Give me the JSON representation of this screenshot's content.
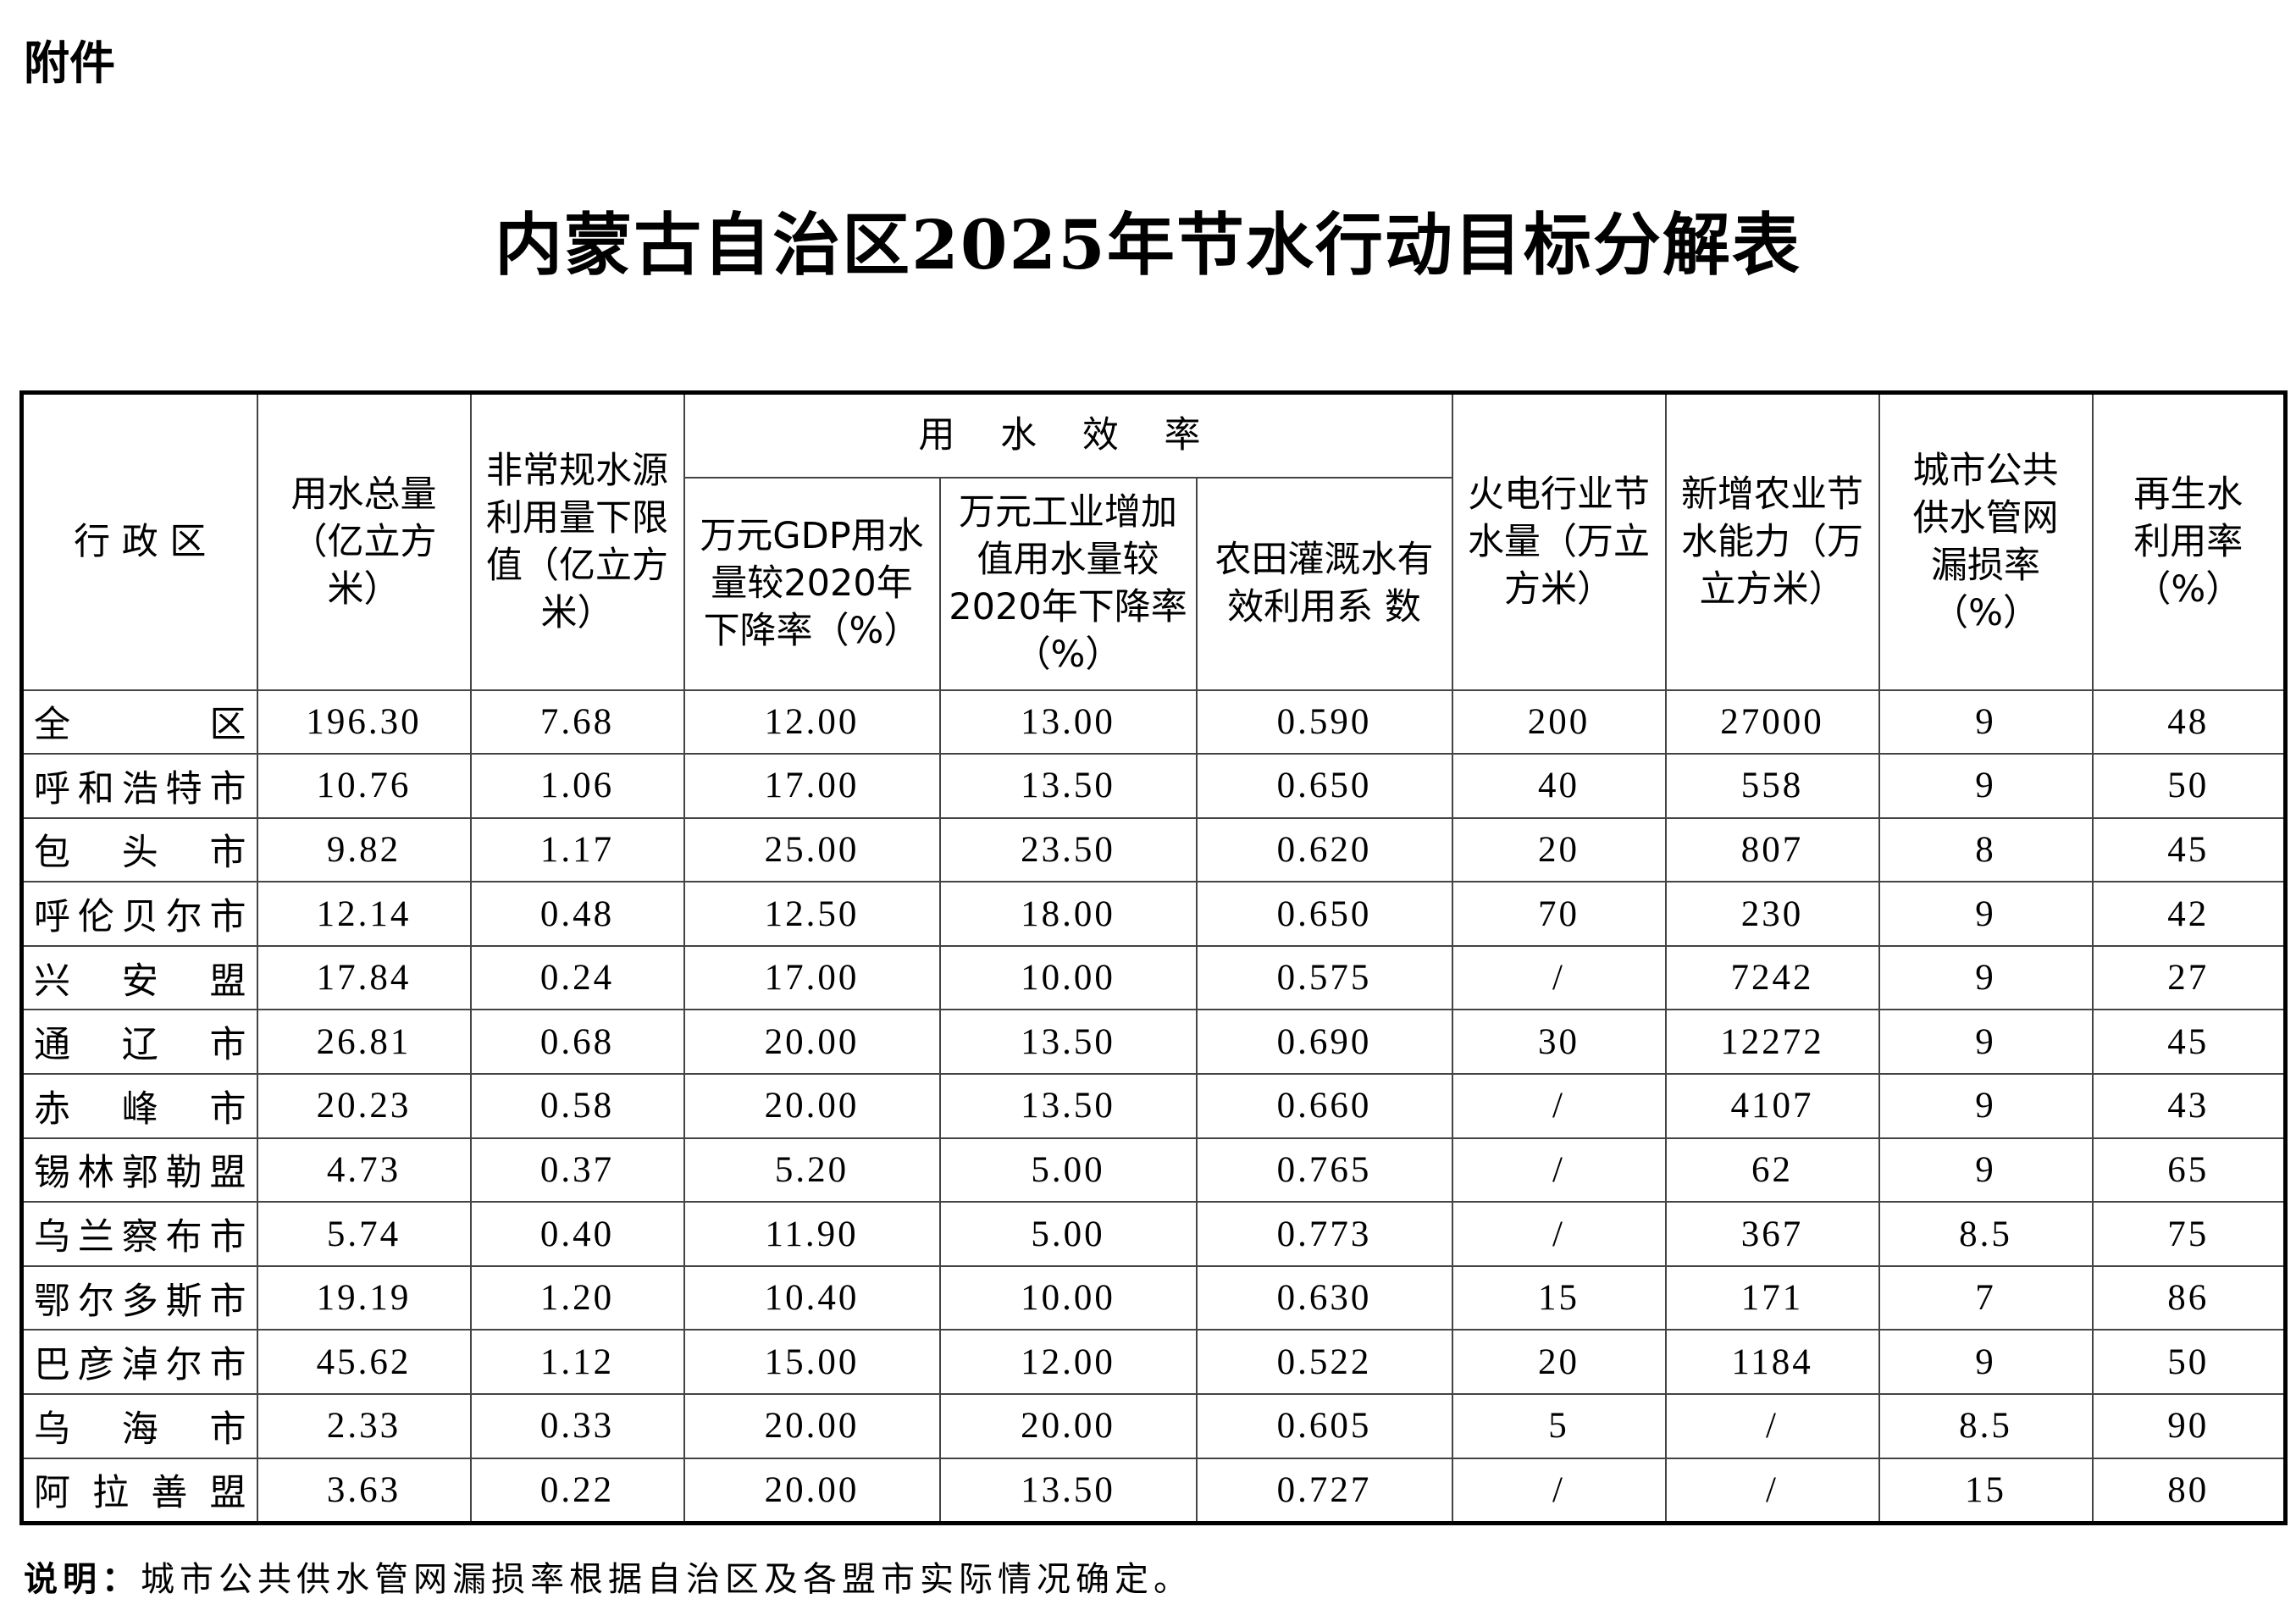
{
  "attachment_label": "附件",
  "title": "内蒙古自治区2025年节水行动目标分解表",
  "table": {
    "headers": {
      "region": "行 政 区",
      "total_water": "用水总量（亿立方米）",
      "unconventional": "非常规水源利用量下限值（亿立方米）",
      "efficiency_group": "用 水 效 率",
      "gdp_decline": "万元GDP用水量较2020年下降率（%）",
      "industry_decline": "万元工业增加值用水量较2020年下降率（%）",
      "irrigation": "农田灌溉水有效利用系 数",
      "thermal": "火电行业节水量（万立方米）",
      "agri_capacity": "新增农业节水能力（万立方米）",
      "leakage": "城市公共供水管网漏损率（%）",
      "reclaimed": "再生水利用率（%）"
    },
    "rows": [
      [
        "全 区",
        "196.30",
        "7.68",
        "12.00",
        "13.00",
        "0.590",
        "200",
        "27000",
        "9",
        "48"
      ],
      [
        "呼和浩特市",
        "10.76",
        "1.06",
        "17.00",
        "13.50",
        "0.650",
        "40",
        "558",
        "9",
        "50"
      ],
      [
        "包 头 市",
        "9.82",
        "1.17",
        "25.00",
        "23.50",
        "0.620",
        "20",
        "807",
        "8",
        "45"
      ],
      [
        "呼伦贝尔市",
        "12.14",
        "0.48",
        "12.50",
        "18.00",
        "0.650",
        "70",
        "230",
        "9",
        "42"
      ],
      [
        "兴 安 盟",
        "17.84",
        "0.24",
        "17.00",
        "10.00",
        "0.575",
        "/",
        "7242",
        "9",
        "27"
      ],
      [
        "通 辽 市",
        "26.81",
        "0.68",
        "20.00",
        "13.50",
        "0.690",
        "30",
        "12272",
        "9",
        "45"
      ],
      [
        "赤 峰 市",
        "20.23",
        "0.58",
        "20.00",
        "13.50",
        "0.660",
        "/",
        "4107",
        "9",
        "43"
      ],
      [
        "锡林郭勒盟",
        "4.73",
        "0.37",
        "5.20",
        "5.00",
        "0.765",
        "/",
        "62",
        "9",
        "65"
      ],
      [
        "乌兰察布市",
        "5.74",
        "0.40",
        "11.90",
        "5.00",
        "0.773",
        "/",
        "367",
        "8.5",
        "75"
      ],
      [
        "鄂尔多斯市",
        "19.19",
        "1.20",
        "10.40",
        "10.00",
        "0.630",
        "15",
        "171",
        "7",
        "86"
      ],
      [
        "巴彦淖尔市",
        "45.62",
        "1.12",
        "15.00",
        "12.00",
        "0.522",
        "20",
        "1184",
        "9",
        "50"
      ],
      [
        "乌 海 市",
        "2.33",
        "0.33",
        "20.00",
        "20.00",
        "0.605",
        "5",
        "/",
        "8.5",
        "90"
      ],
      [
        "阿 拉 善 盟",
        "3.63",
        "0.22",
        "20.00",
        "13.50",
        "0.727",
        "/",
        "/",
        "15",
        "80"
      ]
    ]
  },
  "note_label": "说明：",
  "note_text": "城市公共供水管网漏损率根据自治区及各盟市实际情况确定。"
}
